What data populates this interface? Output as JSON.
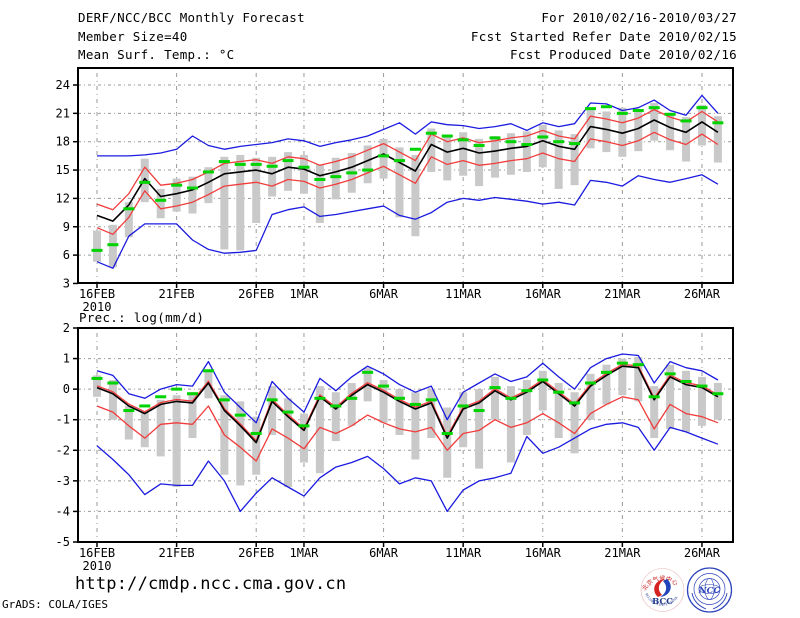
{
  "header": {
    "left": [
      "DERF/NCC/BCC Monthly Forecast",
      "Member Size=40",
      "Mean Surf. Temp.: °C"
    ],
    "right": [
      "For 2010/02/16-2010/03/27",
      "Fcst Started Refer Date 2010/02/15",
      "Fcst Produced Date 2010/02/16"
    ]
  },
  "footer": {
    "url": "http://cmdp.ncc.cma.gov.cn",
    "credit": "GrADS: COLA/IGES"
  },
  "logos": {
    "bcc_label": "BCC",
    "bcc_ring_top": "北京气候中心",
    "bcc_ring_bottom": "BEIJING CLIMATE CENTER",
    "ncc_label": "NCC"
  },
  "colors": {
    "envelope": "#1b1be0",
    "sigma": "#f23c3c",
    "mean": "#000000",
    "obs_dash": "#00d400",
    "spread_bar": "#c9c9c9",
    "grid": "#9a9a9a",
    "frame": "#000000"
  },
  "chart_data": [
    {
      "name": "temperature",
      "type": "line",
      "title": "Mean Surf. Temp.: °C",
      "axes": {
        "ylim": [
          2.9,
          25.8
        ],
        "yticks": [
          24,
          21,
          18,
          15,
          12,
          9,
          6,
          3
        ],
        "grid": true,
        "xticks": [
          {
            "day": 0,
            "label": "16FEB",
            "sublabel": "2010"
          },
          {
            "day": 5,
            "label": "21FEB"
          },
          {
            "day": 10,
            "label": "26FEB"
          },
          {
            "day": 13,
            "label": "1MAR"
          },
          {
            "day": 18,
            "label": "6MAR"
          },
          {
            "day": 23,
            "label": "11MAR"
          },
          {
            "day": 28,
            "label": "16MAR"
          },
          {
            "day": 33,
            "label": "21MAR"
          },
          {
            "day": 38,
            "label": "26MAR"
          }
        ]
      },
      "series_legend": {
        "ens_max": "ensemble max (blue)",
        "ens_min": "ensemble min (blue)",
        "plus_spread": "mean + spread (red)",
        "minus_spread": "mean - spread (red)",
        "ens_mean": "ensemble mean (black)",
        "obs": "daily value marks (green dashes)",
        "spread_bars": "ensemble spread boxes (gray), [low,high]"
      },
      "series": {
        "ens_max": [
          16.5,
          16.5,
          16.5,
          16.6,
          16.8,
          17.2,
          18.6,
          17.6,
          17.2,
          17.5,
          17.7,
          17.9,
          18.3,
          18.1,
          17.5,
          17.9,
          18.2,
          18.6,
          19.3,
          20.0,
          18.8,
          20.1,
          19.8,
          19.7,
          19.4,
          19.6,
          19.9,
          19.2,
          20.0,
          19.6,
          19.9,
          22.1,
          22.0,
          21.3,
          21.6,
          22.4,
          21.3,
          20.8,
          22.9,
          21.0
        ],
        "plus_spread": [
          11.4,
          10.8,
          12.5,
          15.3,
          13.4,
          13.6,
          14.0,
          14.8,
          15.7,
          15.9,
          16.1,
          15.7,
          16.4,
          16.2,
          15.5,
          15.9,
          16.4,
          17.1,
          17.8,
          16.9,
          16.0,
          18.8,
          18.0,
          18.4,
          17.9,
          18.1,
          18.4,
          18.6,
          19.2,
          18.6,
          18.3,
          20.7,
          20.4,
          20.0,
          20.5,
          21.4,
          20.6,
          20.1,
          21.2,
          20.1
        ],
        "ens_mean": [
          10.2,
          9.6,
          11.3,
          14.1,
          12.2,
          12.5,
          12.9,
          13.7,
          14.6,
          14.8,
          15.0,
          14.6,
          15.3,
          15.1,
          14.4,
          14.8,
          15.3,
          16.0,
          16.7,
          15.8,
          14.9,
          17.7,
          16.9,
          17.3,
          16.8,
          17.0,
          17.3,
          17.5,
          18.1,
          17.5,
          17.2,
          19.6,
          19.3,
          18.9,
          19.4,
          20.3,
          19.5,
          19.0,
          20.1,
          19.0
        ],
        "minus_spread": [
          8.9,
          8.2,
          10.0,
          12.8,
          10.9,
          11.2,
          11.6,
          12.4,
          13.3,
          13.5,
          13.7,
          13.3,
          14.0,
          13.8,
          13.1,
          13.5,
          14.0,
          14.7,
          15.4,
          14.5,
          13.6,
          16.4,
          15.6,
          16.0,
          15.5,
          15.7,
          16.0,
          16.2,
          16.8,
          16.2,
          15.9,
          18.3,
          18.0,
          17.6,
          18.1,
          19.0,
          18.2,
          17.7,
          18.8,
          17.7
        ],
        "ens_min": [
          5.3,
          4.6,
          8.0,
          9.3,
          9.3,
          9.3,
          7.6,
          6.6,
          6.2,
          6.3,
          6.5,
          10.3,
          10.8,
          11.1,
          10.1,
          10.3,
          10.6,
          10.9,
          11.2,
          10.2,
          9.8,
          10.5,
          11.6,
          12.0,
          11.8,
          12.1,
          11.9,
          11.7,
          11.4,
          11.6,
          11.3,
          13.9,
          13.7,
          13.3,
          14.4,
          14.0,
          13.7,
          14.1,
          14.5,
          13.5
        ],
        "obs": [
          6.5,
          7.1,
          10.9,
          13.7,
          11.8,
          13.4,
          13.1,
          14.8,
          15.9,
          15.6,
          15.6,
          15.4,
          16.0,
          15.3,
          14.0,
          14.3,
          14.7,
          15.0,
          16.5,
          16.0,
          17.2,
          18.9,
          18.6,
          18.2,
          17.6,
          18.4,
          18.0,
          17.7,
          18.5,
          18.0,
          17.8,
          21.5,
          21.7,
          21.0,
          21.3,
          21.6,
          20.9,
          20.2,
          21.6,
          20.0
        ],
        "spread_bars": [
          [
            5.3,
            8.6
          ],
          [
            4.7,
            9.2
          ],
          [
            7.9,
            11.6
          ],
          [
            11.6,
            16.2
          ],
          [
            9.9,
            13.0
          ],
          [
            10.6,
            14.1
          ],
          [
            10.4,
            14.3
          ],
          [
            11.5,
            15.3
          ],
          [
            6.6,
            16.4
          ],
          [
            6.5,
            16.6
          ],
          [
            9.4,
            16.3
          ],
          [
            12.2,
            16.4
          ],
          [
            12.8,
            16.9
          ],
          [
            12.5,
            16.6
          ],
          [
            9.4,
            15.6
          ],
          [
            11.9,
            16.3
          ],
          [
            12.6,
            16.8
          ],
          [
            13.6,
            17.6
          ],
          [
            14.1,
            18.3
          ],
          [
            10.0,
            17.4
          ],
          [
            8.0,
            16.6
          ],
          [
            14.8,
            19.4
          ],
          [
            13.9,
            18.6
          ],
          [
            14.4,
            19.0
          ],
          [
            13.3,
            18.3
          ],
          [
            14.2,
            18.6
          ],
          [
            14.5,
            18.9
          ],
          [
            14.8,
            19.1
          ],
          [
            15.3,
            19.8
          ],
          [
            13.0,
            19.2
          ],
          [
            13.4,
            18.8
          ],
          [
            17.3,
            21.4
          ],
          [
            16.9,
            21.2
          ],
          [
            16.4,
            21.6
          ],
          [
            17.0,
            21.3
          ],
          [
            18.1,
            22.1
          ],
          [
            17.1,
            21.0
          ],
          [
            15.9,
            20.6
          ],
          [
            17.6,
            21.9
          ],
          [
            15.8,
            20.7
          ]
        ]
      }
    },
    {
      "name": "precipitation",
      "type": "line",
      "title": "Prec.: log(mm/d)",
      "axes": {
        "ylim": [
          -5,
          2
        ],
        "yticks": [
          2,
          1,
          0,
          -1,
          -2,
          -3,
          -4,
          -5
        ],
        "grid": true,
        "xticks": [
          {
            "day": 0,
            "label": "16FEB",
            "sublabel": "2010"
          },
          {
            "day": 5,
            "label": "21FEB"
          },
          {
            "day": 10,
            "label": "26FEB"
          },
          {
            "day": 13,
            "label": "1MAR"
          },
          {
            "day": 18,
            "label": "6MAR"
          },
          {
            "day": 23,
            "label": "11MAR"
          },
          {
            "day": 28,
            "label": "16MAR"
          },
          {
            "day": 33,
            "label": "21MAR"
          },
          {
            "day": 38,
            "label": "26MAR"
          }
        ]
      },
      "series_legend": {
        "ens_max": "ensemble max (blue)",
        "ens_min": "ensemble min (blue)",
        "plus_spread": "mean + spread (red)",
        "minus_spread": "mean - spread (red)",
        "ens_mean": "ensemble mean (black)",
        "obs": "daily value marks (green dashes)",
        "spread_bars": "ensemble spread boxes (gray), [low,high]"
      },
      "series": {
        "ens_max": [
          0.6,
          0.45,
          -0.15,
          -0.3,
          0.0,
          0.15,
          0.1,
          0.9,
          -0.1,
          -0.6,
          -1.1,
          0.25,
          -0.3,
          -0.75,
          0.35,
          -0.05,
          0.4,
          0.75,
          0.5,
          0.15,
          -0.1,
          0.1,
          -1.0,
          -0.1,
          0.2,
          0.5,
          0.25,
          0.4,
          0.85,
          0.4,
          0.0,
          0.7,
          1.0,
          1.15,
          1.1,
          0.2,
          0.9,
          0.7,
          0.6,
          0.3
        ],
        "plus_spread": [
          0.11,
          -0.09,
          -0.49,
          -0.74,
          -0.44,
          -0.34,
          -0.39,
          0.26,
          -0.64,
          -1.14,
          -1.69,
          -0.34,
          -0.84,
          -1.29,
          -0.19,
          -0.59,
          -0.14,
          0.21,
          -0.04,
          -0.34,
          -0.59,
          -0.39,
          -1.54,
          -0.59,
          -0.39,
          0.01,
          -0.29,
          -0.04,
          0.31,
          -0.09,
          -0.49,
          0.16,
          0.51,
          0.81,
          0.76,
          -0.29,
          0.46,
          0.21,
          0.11,
          -0.19
        ],
        "ens_mean": [
          0.05,
          -0.15,
          -0.55,
          -0.8,
          -0.5,
          -0.4,
          -0.45,
          0.2,
          -0.7,
          -1.2,
          -1.75,
          -0.4,
          -0.9,
          -1.35,
          -0.25,
          -0.65,
          -0.2,
          0.15,
          -0.1,
          -0.4,
          -0.65,
          -0.45,
          -1.6,
          -0.65,
          -0.45,
          -0.05,
          -0.35,
          -0.1,
          0.25,
          -0.15,
          -0.55,
          0.1,
          0.45,
          0.75,
          0.7,
          -0.35,
          0.4,
          0.15,
          0.05,
          -0.25
        ],
        "minus_spread": [
          -0.55,
          -0.75,
          -1.2,
          -1.6,
          -1.15,
          -1.1,
          -1.15,
          -0.55,
          -1.5,
          -1.9,
          -2.35,
          -1.3,
          -1.6,
          -1.95,
          -1.25,
          -1.45,
          -1.2,
          -0.85,
          -1.1,
          -1.3,
          -1.4,
          -1.25,
          -2.0,
          -1.45,
          -1.35,
          -1.0,
          -1.25,
          -1.1,
          -0.8,
          -1.1,
          -1.45,
          -0.8,
          -0.5,
          -0.25,
          -0.35,
          -1.3,
          -0.5,
          -0.8,
          -0.9,
          -1.1
        ],
        "ens_min": [
          -1.85,
          -2.3,
          -2.8,
          -3.45,
          -3.1,
          -3.15,
          -3.15,
          -2.35,
          -3.0,
          -4.0,
          -3.4,
          -2.9,
          -3.2,
          -3.5,
          -2.9,
          -2.55,
          -2.4,
          -2.2,
          -2.6,
          -3.1,
          -2.9,
          -3.0,
          -4.0,
          -3.3,
          -3.0,
          -2.9,
          -2.75,
          -1.55,
          -2.1,
          -1.9,
          -1.6,
          -1.3,
          -1.15,
          -1.1,
          -1.25,
          -2.0,
          -1.25,
          -1.4,
          -1.6,
          -1.8
        ],
        "obs": [
          0.35,
          0.2,
          -0.7,
          -0.55,
          -0.25,
          0.0,
          -0.15,
          0.6,
          -0.35,
          -0.85,
          -1.45,
          -0.35,
          -0.75,
          -1.2,
          -0.3,
          -0.55,
          -0.3,
          0.55,
          0.1,
          -0.3,
          -0.5,
          -0.35,
          -1.45,
          -0.55,
          -0.7,
          0.05,
          -0.3,
          -0.05,
          0.3,
          -0.1,
          -0.45,
          0.2,
          0.55,
          0.85,
          0.8,
          -0.25,
          0.5,
          0.25,
          0.1,
          -0.15
        ],
        "spread_bars": [
          [
            -0.25,
            0.45
          ],
          [
            -1.0,
            0.3
          ],
          [
            -1.65,
            -0.55
          ],
          [
            -1.9,
            -0.75
          ],
          [
            -2.2,
            -0.35
          ],
          [
            -3.2,
            -0.2
          ],
          [
            -1.6,
            -0.1
          ],
          [
            -0.3,
            0.65
          ],
          [
            -2.8,
            -0.2
          ],
          [
            -3.15,
            -0.4
          ],
          [
            -2.8,
            -0.9
          ],
          [
            -1.5,
            0.1
          ],
          [
            -3.2,
            -0.3
          ],
          [
            -2.4,
            -0.8
          ],
          [
            -2.75,
            0.1
          ],
          [
            -1.7,
            -0.1
          ],
          [
            -1.2,
            0.2
          ],
          [
            -0.4,
            0.7
          ],
          [
            -1.1,
            0.3
          ],
          [
            -1.5,
            0.0
          ],
          [
            -2.3,
            -0.1
          ],
          [
            -1.6,
            0.0
          ],
          [
            -2.9,
            -0.6
          ],
          [
            -1.9,
            -0.1
          ],
          [
            -2.6,
            0.0
          ],
          [
            -1.0,
            0.4
          ],
          [
            -2.4,
            0.1
          ],
          [
            -1.5,
            0.3
          ],
          [
            -0.7,
            0.6
          ],
          [
            -1.6,
            0.2
          ],
          [
            -2.1,
            -0.1
          ],
          [
            -1.0,
            0.5
          ],
          [
            -0.5,
            0.8
          ],
          [
            -0.2,
            1.0
          ],
          [
            -0.4,
            1.05
          ],
          [
            -1.6,
            0.1
          ],
          [
            -1.3,
            0.8
          ],
          [
            -1.4,
            0.6
          ],
          [
            -1.2,
            0.4
          ],
          [
            -1.0,
            0.2
          ]
        ]
      }
    }
  ]
}
